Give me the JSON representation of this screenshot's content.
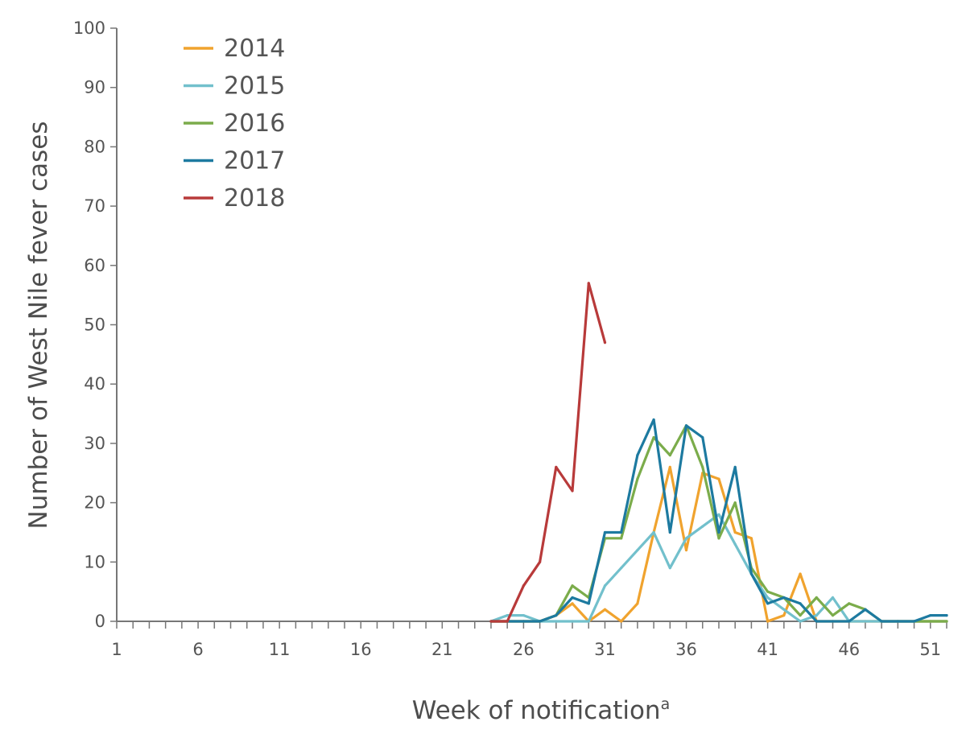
{
  "chart_data": {
    "type": "line",
    "title": "",
    "xlabel": "Week of notification",
    "xlabel_superscript": "a",
    "ylabel": "Number of West Nile fever cases",
    "xlim": [
      1,
      52
    ],
    "ylim": [
      0,
      100
    ],
    "x_ticks": [
      1,
      6,
      11,
      16,
      21,
      26,
      31,
      36,
      41,
      46,
      51
    ],
    "y_ticks": [
      0,
      10,
      20,
      30,
      40,
      50,
      60,
      70,
      80,
      90,
      100
    ],
    "grid": false,
    "legend_position": "top-left",
    "series": [
      {
        "name": "2014",
        "color": "#f0a32e",
        "x": [
          24,
          25,
          26,
          27,
          28,
          29,
          30,
          31,
          32,
          33,
          34,
          35,
          36,
          37,
          38,
          39,
          40,
          41,
          42,
          43,
          44,
          45,
          46,
          47,
          48,
          49,
          50,
          51,
          52
        ],
        "values": [
          0,
          0,
          0,
          0,
          1,
          3,
          0,
          2,
          0,
          3,
          15,
          26,
          12,
          25,
          24,
          15,
          14,
          0,
          1,
          8,
          0,
          0,
          0,
          0,
          0,
          0,
          0,
          0,
          0
        ]
      },
      {
        "name": "2015",
        "color": "#72c0cc",
        "x": [
          24,
          25,
          26,
          27,
          28,
          29,
          30,
          31,
          32,
          33,
          34,
          35,
          36,
          37,
          38,
          39,
          40,
          41,
          42,
          43,
          44,
          45,
          46,
          47,
          48,
          49,
          50,
          51,
          52
        ],
        "values": [
          0,
          1,
          1,
          0,
          0,
          0,
          0,
          6,
          9,
          12,
          15,
          9,
          14,
          16,
          18,
          13,
          8,
          4,
          2,
          0,
          1,
          4,
          0,
          0,
          0,
          0,
          0,
          0,
          0
        ]
      },
      {
        "name": "2016",
        "color": "#7bac4b",
        "x": [
          24,
          25,
          26,
          27,
          28,
          29,
          30,
          31,
          32,
          33,
          34,
          35,
          36,
          37,
          38,
          39,
          40,
          41,
          42,
          43,
          44,
          45,
          46,
          47,
          48,
          49,
          50,
          51,
          52
        ],
        "values": [
          0,
          0,
          0,
          0,
          1,
          6,
          4,
          14,
          14,
          24,
          31,
          28,
          33,
          26,
          14,
          20,
          9,
          5,
          4,
          1,
          4,
          1,
          3,
          2,
          0,
          0,
          0,
          0,
          0
        ]
      },
      {
        "name": "2017",
        "color": "#1d7aa0",
        "x": [
          24,
          25,
          26,
          27,
          28,
          29,
          30,
          31,
          32,
          33,
          34,
          35,
          36,
          37,
          38,
          39,
          40,
          41,
          42,
          43,
          44,
          45,
          46,
          47,
          48,
          49,
          50,
          51,
          52
        ],
        "values": [
          0,
          0,
          0,
          0,
          1,
          4,
          3,
          15,
          15,
          28,
          34,
          15,
          33,
          31,
          15,
          26,
          8,
          3,
          4,
          3,
          0,
          0,
          0,
          2,
          0,
          0,
          0,
          1,
          1
        ]
      },
      {
        "name": "2018",
        "color": "#b83a3a",
        "x": [
          24,
          25,
          26,
          27,
          28,
          29,
          30,
          31
        ],
        "values": [
          0,
          0,
          6,
          10,
          26,
          22,
          57,
          47
        ]
      }
    ]
  }
}
